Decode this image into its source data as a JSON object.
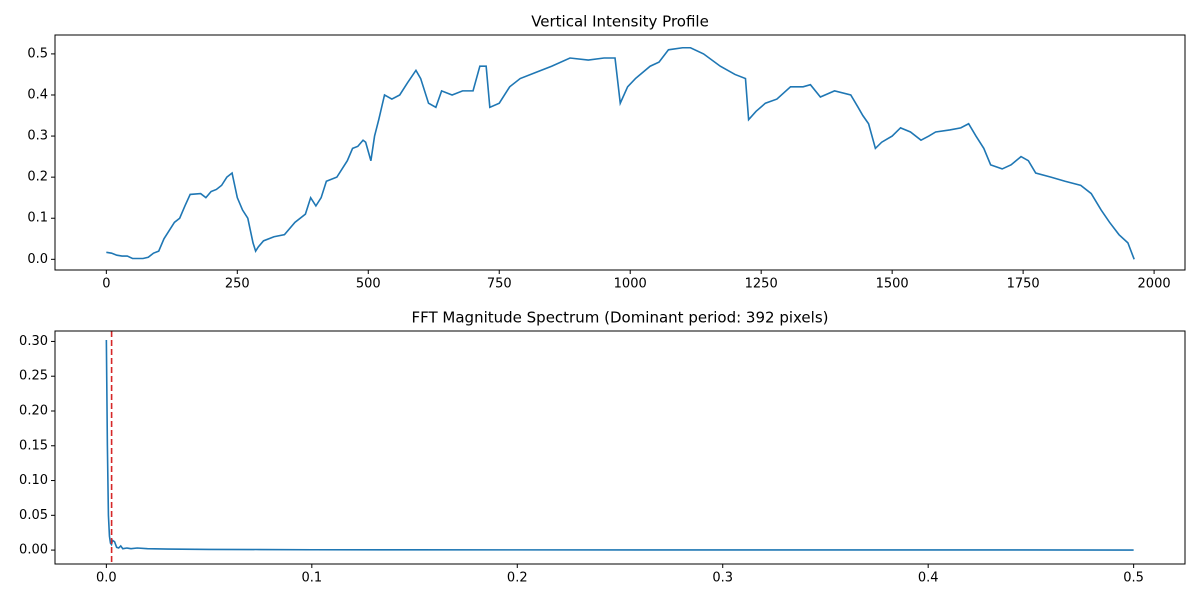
{
  "chart_data": [
    {
      "type": "line",
      "title": "Vertical Intensity Profile",
      "color": "#1f77b4",
      "x": [
        0,
        10,
        20,
        30,
        40,
        50,
        60,
        70,
        80,
        90,
        100,
        110,
        120,
        130,
        140,
        150,
        160,
        180,
        190,
        200,
        210,
        220,
        230,
        240,
        250,
        260,
        270,
        280,
        285,
        290,
        300,
        320,
        340,
        360,
        380,
        390,
        400,
        410,
        420,
        440,
        460,
        470,
        480,
        490,
        495,
        505,
        512,
        520,
        531,
        545,
        560,
        575,
        591,
        600,
        615,
        629,
        640,
        660,
        680,
        700,
        713,
        725,
        732,
        750,
        770,
        790,
        820,
        850,
        885,
        920,
        950,
        971,
        981,
        995,
        1010,
        1038,
        1055,
        1073,
        1100,
        1115,
        1140,
        1172,
        1200,
        1220,
        1226,
        1240,
        1258,
        1280,
        1306,
        1330,
        1344,
        1363,
        1390,
        1421,
        1435,
        1444,
        1455,
        1468,
        1480,
        1500,
        1516,
        1535,
        1555,
        1570,
        1583,
        1610,
        1631,
        1646,
        1660,
        1675,
        1688,
        1710,
        1727,
        1746,
        1760,
        1774,
        1803,
        1830,
        1860,
        1880,
        1899,
        1915,
        1933,
        1950,
        1962
      ],
      "values": [
        0.017,
        0.015,
        0.01,
        0.008,
        0.008,
        0.002,
        0.002,
        0.002,
        0.005,
        0.015,
        0.02,
        0.05,
        0.07,
        0.09,
        0.1,
        0.13,
        0.158,
        0.16,
        0.15,
        0.165,
        0.17,
        0.18,
        0.2,
        0.21,
        0.15,
        0.12,
        0.1,
        0.04,
        0.02,
        0.03,
        0.045,
        0.055,
        0.06,
        0.09,
        0.11,
        0.15,
        0.13,
        0.15,
        0.19,
        0.2,
        0.24,
        0.27,
        0.275,
        0.29,
        0.285,
        0.24,
        0.3,
        0.34,
        0.4,
        0.39,
        0.4,
        0.43,
        0.46,
        0.44,
        0.38,
        0.37,
        0.41,
        0.4,
        0.41,
        0.41,
        0.47,
        0.47,
        0.37,
        0.38,
        0.42,
        0.44,
        0.455,
        0.47,
        0.49,
        0.485,
        0.49,
        0.49,
        0.38,
        0.42,
        0.44,
        0.47,
        0.48,
        0.51,
        0.515,
        0.515,
        0.5,
        0.47,
        0.45,
        0.44,
        0.34,
        0.36,
        0.38,
        0.39,
        0.42,
        0.42,
        0.425,
        0.395,
        0.41,
        0.4,
        0.37,
        0.35,
        0.33,
        0.27,
        0.285,
        0.3,
        0.32,
        0.31,
        0.29,
        0.3,
        0.31,
        0.315,
        0.32,
        0.33,
        0.3,
        0.27,
        0.23,
        0.22,
        0.23,
        0.25,
        0.24,
        0.21,
        0.2,
        0.19,
        0.18,
        0.16,
        0.12,
        0.09,
        0.06,
        0.04,
        0.0
      ],
      "xlim": [
        -98,
        2059
      ],
      "ylim": [
        -0.026,
        0.546
      ],
      "xticks": [
        0,
        250,
        500,
        750,
        1000,
        1250,
        1500,
        1750,
        2000
      ],
      "yticks": [
        {
          "value": 0,
          "label": "0.0"
        },
        0.1,
        0.2,
        0.3,
        0.4,
        0.5
      ]
    },
    {
      "type": "line",
      "title": "FFT Magnitude Spectrum (Dominant period: 392 pixels)",
      "color": "#1f77b4",
      "x": [
        0,
        0.0005,
        0.001,
        0.0015,
        0.002,
        0.0025,
        0.003,
        0.004,
        0.005,
        0.006,
        0.007,
        0.008,
        0.01,
        0.012,
        0.015,
        0.02,
        0.03,
        0.05,
        0.075,
        0.1,
        0.15,
        0.2,
        0.3,
        0.4,
        0.5
      ],
      "values": [
        0.302,
        0.15,
        0.05,
        0.02,
        0.01,
        0.008,
        0.014,
        0.012,
        0.004,
        0.003,
        0.006,
        0.002,
        0.003,
        0.002,
        0.003,
        0.002,
        0.0015,
        0.001,
        0.0008,
        0.0005,
        0.0004,
        0.0003,
        0.0002,
        0.0002,
        0.0001
      ],
      "vline": {
        "x": 0.00255,
        "color": "#d62728"
      },
      "xlim": [
        -0.025,
        0.525
      ],
      "ylim": [
        -0.02,
        0.315
      ],
      "xticks": [
        {
          "value": 0,
          "label": "0.0"
        },
        0.1,
        0.2,
        0.3,
        0.4,
        0.5
      ],
      "yticks": [
        {
          "value": 0,
          "label": "0.00"
        },
        {
          "value": 0.05,
          "label": "0.05"
        },
        {
          "value": 0.1,
          "label": "0.10"
        },
        {
          "value": 0.15,
          "label": "0.15"
        },
        {
          "value": 0.2,
          "label": "0.20"
        },
        {
          "value": 0.25,
          "label": "0.25"
        },
        {
          "value": 0.3,
          "label": "0.30"
        }
      ]
    }
  ]
}
